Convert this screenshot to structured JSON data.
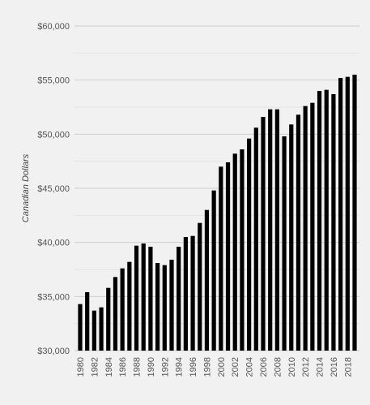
{
  "chart_data": {
    "type": "bar",
    "title": "",
    "xlabel": "",
    "ylabel": "Canadian Dollars",
    "ylim": [
      30000,
      60000
    ],
    "y_ticks": [
      "$30,000",
      "$35,000",
      "$40,000",
      "$45,000",
      "$50,000",
      "$55,000",
      "$60,000"
    ],
    "y_tick_values": [
      30000,
      35000,
      40000,
      45000,
      50000,
      55000,
      60000
    ],
    "grid": true,
    "bar_color": "#000000",
    "categories": [
      "1980",
      "1981",
      "1982",
      "1983",
      "1984",
      "1985",
      "1986",
      "1987",
      "1988",
      "1989",
      "1990",
      "1991",
      "1992",
      "1993",
      "1994",
      "1995",
      "1996",
      "1997",
      "1998",
      "1999",
      "2000",
      "2001",
      "2002",
      "2003",
      "2004",
      "2005",
      "2006",
      "2007",
      "2008",
      "2009",
      "2010",
      "2011",
      "2012",
      "2013",
      "2014",
      "2015",
      "2016",
      "2017",
      "2018",
      "2019"
    ],
    "x_tick_labels": [
      "1980",
      "1982",
      "1984",
      "1986",
      "1988",
      "1990",
      "1992",
      "1994",
      "1996",
      "1998",
      "2000",
      "2002",
      "2004",
      "2006",
      "2008",
      "2010",
      "2012",
      "2014",
      "2016",
      "2018"
    ],
    "values": [
      34300,
      35400,
      33700,
      34000,
      35800,
      36800,
      37600,
      38200,
      39700,
      39900,
      39600,
      38100,
      37900,
      38400,
      39600,
      40500,
      40600,
      41800,
      43000,
      44800,
      47000,
      47400,
      48200,
      48600,
      49600,
      50600,
      51600,
      52300,
      52300,
      49800,
      50900,
      51800,
      52600,
      52900,
      54000,
      54100,
      53700,
      55200,
      55300,
      55500
    ]
  }
}
